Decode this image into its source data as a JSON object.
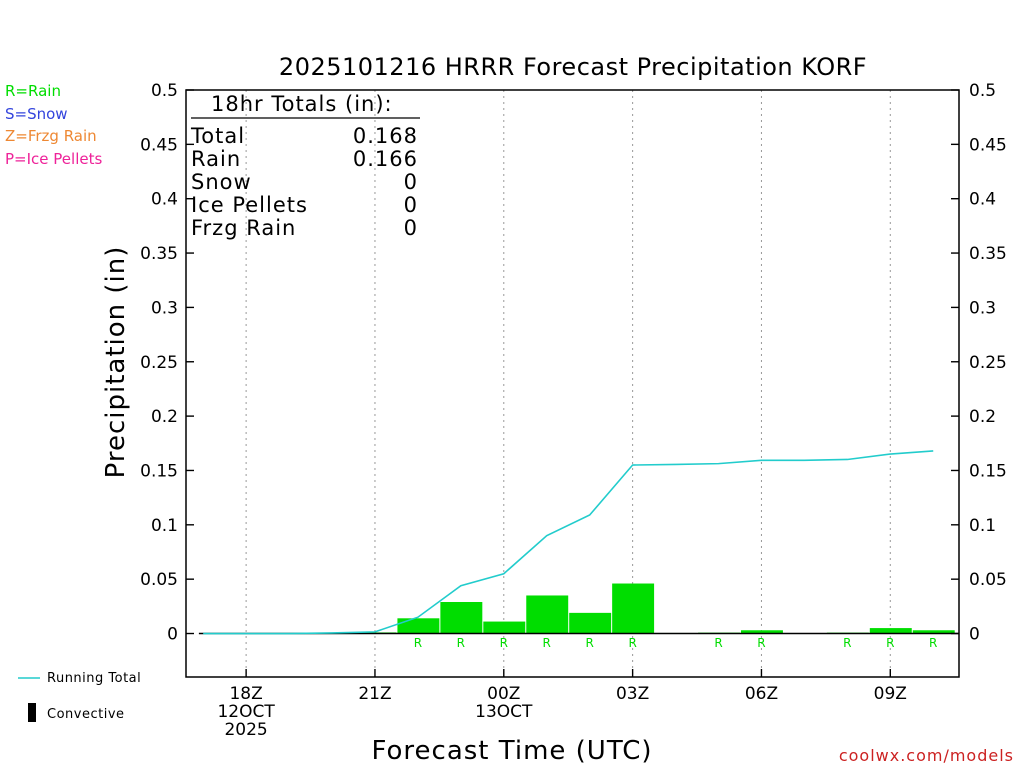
{
  "colors": {
    "rain": "#00dd00",
    "snow": "#3344dd",
    "frzg": "#ee8833",
    "ice": "#ee2299",
    "running_total": "#22cccc",
    "convective": "#000000",
    "credit": "#cc2222"
  },
  "legend": {
    "rain": "R=Rain",
    "snow": "S=Snow",
    "frzg": "Z=Frzg Rain",
    "ice": "P=Ice Pellets",
    "running_total": "Running Total",
    "convective": "Convective"
  },
  "totals": {
    "header": "18hr Totals (in):",
    "rows": [
      {
        "label": "Total",
        "value": "0.168"
      },
      {
        "label": "Rain",
        "value": "0.166"
      },
      {
        "label": "Snow",
        "value": "0"
      },
      {
        "label": "Ice Pellets",
        "value": "0"
      },
      {
        "label": "Frzg Rain",
        "value": "0"
      }
    ]
  },
  "credit": "coolwx.com/models",
  "chart_data": {
    "type": "bar",
    "title": "2025101216 HRRR Forecast Precipitation KORF",
    "xlabel": "Forecast Time (UTC)",
    "ylabel": "Precipitation (in)",
    "xlim": [
      16.6,
      34.6
    ],
    "ylim": [
      -0.04,
      0.5
    ],
    "y_ticks": [
      {
        "value": 0,
        "label": "0"
      },
      {
        "value": 0.05,
        "label": "0.05"
      },
      {
        "value": 0.1,
        "label": "0.1"
      },
      {
        "value": 0.15,
        "label": "0.15"
      },
      {
        "value": 0.2,
        "label": "0.2"
      },
      {
        "value": 0.25,
        "label": "0.25"
      },
      {
        "value": 0.3,
        "label": "0.3"
      },
      {
        "value": 0.35,
        "label": "0.35"
      },
      {
        "value": 0.4,
        "label": "0.4"
      },
      {
        "value": 0.45,
        "label": "0.45"
      },
      {
        "value": 0.5,
        "label": "0.5"
      }
    ],
    "x_ticks": [
      {
        "hour": 18,
        "lines": [
          "18Z",
          "12OCT",
          "2025"
        ]
      },
      {
        "hour": 21,
        "lines": [
          "21Z"
        ]
      },
      {
        "hour": 24,
        "lines": [
          "00Z",
          "13OCT"
        ]
      },
      {
        "hour": 27,
        "lines": [
          "03Z"
        ]
      },
      {
        "hour": 30,
        "lines": [
          "06Z"
        ]
      },
      {
        "hour": 33,
        "lines": [
          "09Z"
        ]
      }
    ],
    "hourly_precip": {
      "hours": [
        17,
        18,
        19,
        20,
        21,
        22,
        23,
        24,
        25,
        26,
        27,
        28,
        29,
        30,
        31,
        32,
        33,
        34
      ],
      "values": [
        0,
        0,
        0,
        0,
        0.001,
        0.014,
        0.029,
        0.011,
        0.035,
        0.019,
        0.046,
        0.0005,
        0.0008,
        0.003,
        0,
        0.0008,
        0.005,
        0.003
      ],
      "ptype": [
        "",
        "",
        "",
        "",
        "",
        "R",
        "R",
        "R",
        "R",
        "R",
        "R",
        "",
        "R",
        "R",
        "",
        "R",
        "R",
        "R"
      ]
    },
    "running_total": {
      "hours": [
        17,
        18,
        19,
        20,
        21,
        22,
        23,
        24,
        25,
        26,
        27,
        28,
        29,
        30,
        31,
        32,
        33,
        34
      ],
      "values": [
        0,
        0,
        0,
        0.0005,
        0.0015,
        0.015,
        0.044,
        0.055,
        0.09,
        0.109,
        0.155,
        0.1555,
        0.1563,
        0.1593,
        0.1593,
        0.1601,
        0.1651,
        0.168
      ]
    }
  }
}
